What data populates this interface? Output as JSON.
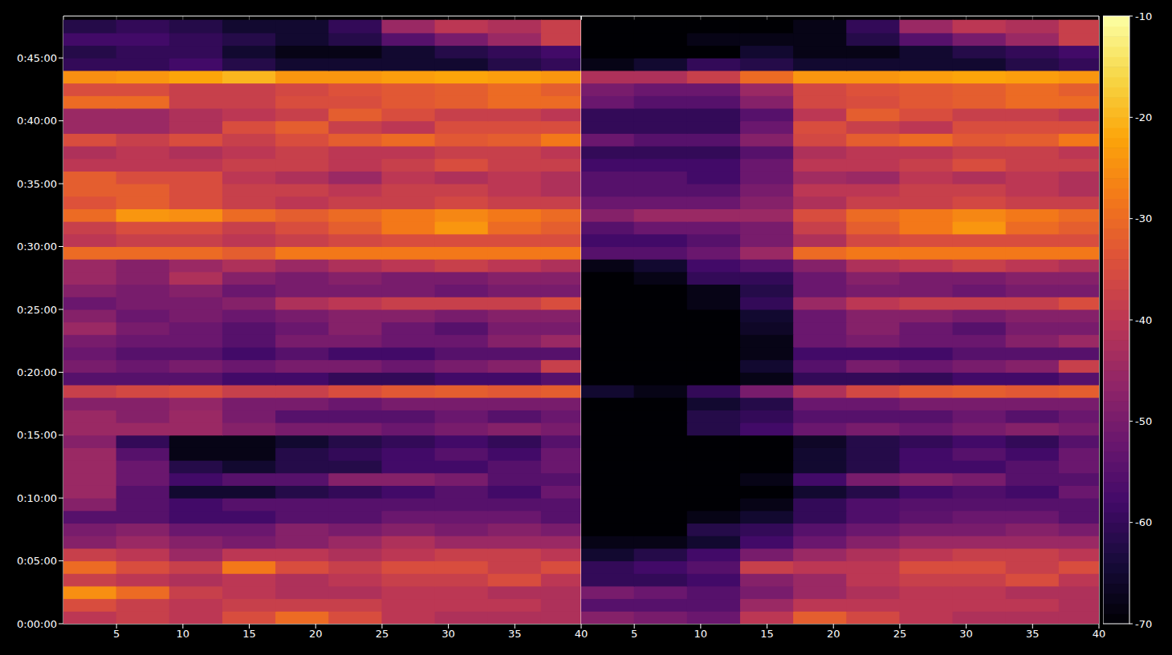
{
  "chart_data": [
    {
      "type": "heatmap",
      "grid": true,
      "xlim": [
        1,
        40
      ],
      "xticks": [
        5,
        10,
        15,
        20,
        25,
        30,
        35,
        40
      ],
      "ylim": [
        0,
        2900
      ],
      "yticks": [
        {
          "value": 0,
          "label": "0:00:00"
        },
        {
          "value": 300,
          "label": "0:05:00"
        },
        {
          "value": 600,
          "label": "0:10:00"
        },
        {
          "value": 900,
          "label": "0:15:00"
        },
        {
          "value": 1200,
          "label": "0:20:00"
        },
        {
          "value": 1500,
          "label": "0:25:00"
        },
        {
          "value": 1800,
          "label": "0:30:00"
        },
        {
          "value": 2100,
          "label": "0:35:00"
        },
        {
          "value": 2400,
          "label": "0:40:00"
        },
        {
          "value": 2700,
          "label": "0:45:00"
        }
      ],
      "x": [
        3,
        7,
        11,
        15,
        19,
        23,
        27,
        31,
        35,
        39
      ],
      "y": [
        30,
        90,
        150,
        210,
        270,
        330,
        390,
        450,
        510,
        570,
        630,
        690,
        750,
        810,
        870,
        930,
        990,
        1050,
        1110,
        1170,
        1230,
        1290,
        1350,
        1410,
        1470,
        1530,
        1590,
        1650,
        1710,
        1770,
        1830,
        1890,
        1950,
        2010,
        2070,
        2130,
        2190,
        2250,
        2310,
        2370,
        2430,
        2490,
        2550,
        2610,
        2670,
        2730,
        2790,
        2850
      ],
      "values": [
        [
          -40,
          -38,
          -40,
          -35,
          -30,
          -35,
          -40,
          -42,
          -42,
          -42
        ],
        [
          -35,
          -38,
          -40,
          -38,
          -38,
          -38,
          -40,
          -40,
          -40,
          -42
        ],
        [
          -25,
          -30,
          -38,
          -40,
          -42,
          -42,
          -40,
          -40,
          -42,
          -42
        ],
        [
          -38,
          -40,
          -42,
          -40,
          -42,
          -40,
          -38,
          -38,
          -35,
          -40
        ],
        [
          -30,
          -35,
          -38,
          -28,
          -35,
          -38,
          -35,
          -35,
          -38,
          -35
        ],
        [
          -38,
          -40,
          -45,
          -40,
          -40,
          -42,
          -40,
          -38,
          -38,
          -40
        ],
        [
          -48,
          -45,
          -48,
          -50,
          -48,
          -45,
          -42,
          -45,
          -45,
          -45
        ],
        [
          -50,
          -48,
          -52,
          -52,
          -48,
          -50,
          -48,
          -50,
          -48,
          -50
        ],
        [
          -55,
          -55,
          -58,
          -58,
          -55,
          -55,
          -52,
          -52,
          -52,
          -55
        ],
        [
          -48,
          -55,
          -58,
          -55,
          -55,
          -55,
          -55,
          -55,
          -55,
          -55
        ],
        [
          -45,
          -55,
          -65,
          -65,
          -62,
          -60,
          -58,
          -55,
          -58,
          -52
        ],
        [
          -45,
          -52,
          -58,
          -55,
          -55,
          -48,
          -48,
          -50,
          -55,
          -55
        ],
        [
          -45,
          -52,
          -62,
          -65,
          -62,
          -62,
          -58,
          -58,
          -55,
          -52
        ],
        [
          -45,
          -55,
          -68,
          -68,
          -62,
          -60,
          -58,
          -55,
          -58,
          -52
        ],
        [
          -48,
          -60,
          -68,
          -68,
          -65,
          -62,
          -60,
          -58,
          -60,
          -55
        ],
        [
          -45,
          -45,
          -45,
          -48,
          -50,
          -50,
          -52,
          -50,
          -48,
          -50
        ],
        [
          -45,
          -48,
          -45,
          -50,
          -55,
          -55,
          -55,
          -52,
          -55,
          -52
        ],
        [
          -48,
          -48,
          -46,
          -50,
          -50,
          -52,
          -50,
          -50,
          -50,
          -50
        ],
        [
          -38,
          -36,
          -35,
          -38,
          -38,
          -35,
          -33,
          -32,
          -33,
          -32
        ],
        [
          -55,
          -55,
          -55,
          -58,
          -58,
          -60,
          -60,
          -58,
          -58,
          -55
        ],
        [
          -50,
          -52,
          -50,
          -52,
          -50,
          -50,
          -52,
          -50,
          -48,
          -38
        ],
        [
          -52,
          -55,
          -55,
          -58,
          -55,
          -58,
          -58,
          -55,
          -55,
          -55
        ],
        [
          -50,
          -52,
          -52,
          -55,
          -50,
          -50,
          -52,
          -52,
          -48,
          -45
        ],
        [
          -45,
          -50,
          -52,
          -55,
          -52,
          -48,
          -52,
          -55,
          -50,
          -50
        ],
        [
          -48,
          -52,
          -50,
          -52,
          -50,
          -48,
          -48,
          -50,
          -48,
          -48
        ],
        [
          -52,
          -50,
          -50,
          -48,
          -42,
          -40,
          -38,
          -38,
          -38,
          -35
        ],
        [
          -48,
          -50,
          -48,
          -52,
          -50,
          -50,
          -50,
          -52,
          -50,
          -50
        ],
        [
          -45,
          -48,
          -42,
          -48,
          -50,
          -48,
          -50,
          -50,
          -48,
          -48
        ],
        [
          -45,
          -48,
          -45,
          -42,
          -45,
          -42,
          -40,
          -38,
          -40,
          -42
        ],
        [
          -30,
          -30,
          -30,
          -32,
          -28,
          -28,
          -28,
          -28,
          -28,
          -28
        ],
        [
          -40,
          -38,
          -38,
          -40,
          -38,
          -36,
          -35,
          -35,
          -35,
          -35
        ],
        [
          -38,
          -35,
          -35,
          -38,
          -35,
          -32,
          -28,
          -24,
          -30,
          -32
        ],
        [
          -30,
          -24,
          -25,
          -30,
          -32,
          -30,
          -28,
          -26,
          -28,
          -30
        ],
        [
          -34,
          -32,
          -35,
          -38,
          -40,
          -38,
          -38,
          -36,
          -38,
          -38
        ],
        [
          -32,
          -32,
          -35,
          -38,
          -38,
          -40,
          -38,
          -38,
          -40,
          -42
        ],
        [
          -32,
          -35,
          -35,
          -40,
          -42,
          -45,
          -40,
          -42,
          -40,
          -42
        ],
        [
          -40,
          -40,
          -40,
          -38,
          -38,
          -40,
          -38,
          -35,
          -38,
          -38
        ],
        [
          -42,
          -40,
          -42,
          -40,
          -38,
          -40,
          -40,
          -38,
          -38,
          -40
        ],
        [
          -35,
          -38,
          -35,
          -38,
          -35,
          -32,
          -30,
          -33,
          -32,
          -28
        ],
        [
          -45,
          -45,
          -42,
          -35,
          -32,
          -38,
          -40,
          -35,
          -35,
          -35
        ],
        [
          -45,
          -45,
          -42,
          -40,
          -38,
          -32,
          -35,
          -38,
          -38,
          -40
        ],
        [
          -30,
          -30,
          -38,
          -38,
          -35,
          -35,
          -33,
          -32,
          -30,
          -30
        ],
        [
          -35,
          -35,
          -38,
          -38,
          -36,
          -34,
          -33,
          -32,
          -30,
          -32
        ],
        [
          -25,
          -24,
          -22,
          -20,
          -24,
          -24,
          -23,
          -22,
          -23,
          -24
        ],
        [
          -60,
          -60,
          -58,
          -62,
          -65,
          -65,
          -65,
          -65,
          -62,
          -60
        ],
        [
          -62,
          -60,
          -60,
          -65,
          -68,
          -68,
          -65,
          -62,
          -60,
          -58
        ],
        [
          -58,
          -58,
          -60,
          -62,
          -65,
          -62,
          -55,
          -50,
          -45,
          -38
        ],
        [
          -62,
          -60,
          -62,
          -65,
          -65,
          -60,
          -45,
          -40,
          -42,
          -38
        ]
      ]
    },
    {
      "type": "heatmap",
      "grid": true,
      "xlim": [
        1,
        40
      ],
      "xticks": [
        5,
        10,
        15,
        20,
        25,
        30,
        35,
        40
      ],
      "ylim": [
        0,
        2900
      ],
      "tick_labels": "x",
      "x": [
        3,
        7,
        11,
        15,
        19,
        23,
        27,
        31,
        35,
        39
      ],
      "y": [
        30,
        90,
        150,
        210,
        270,
        330,
        390,
        450,
        510,
        570,
        630,
        690,
        750,
        810,
        870,
        930,
        990,
        1050,
        1110,
        1170,
        1230,
        1290,
        1350,
        1410,
        1470,
        1530,
        1590,
        1650,
        1710,
        1770,
        1830,
        1890,
        1950,
        2010,
        2070,
        2130,
        2190,
        2250,
        2310,
        2370,
        2430,
        2490,
        2550,
        2610,
        2670,
        2730,
        2790,
        2850
      ],
      "values": [
        [
          -48,
          -50,
          -52,
          -40,
          -32,
          -36,
          -40,
          -42,
          -42,
          -42
        ],
        [
          -55,
          -55,
          -55,
          -45,
          -40,
          -40,
          -40,
          -40,
          -40,
          -42
        ],
        [
          -50,
          -52,
          -55,
          -50,
          -45,
          -42,
          -40,
          -40,
          -42,
          -42
        ],
        [
          -60,
          -60,
          -58,
          -48,
          -45,
          -40,
          -38,
          -38,
          -35,
          -40
        ],
        [
          -60,
          -58,
          -55,
          -38,
          -40,
          -40,
          -35,
          -35,
          -38,
          -35
        ],
        [
          -65,
          -62,
          -58,
          -50,
          -45,
          -42,
          -40,
          -38,
          -38,
          -40
        ],
        [
          -68,
          -68,
          -65,
          -58,
          -52,
          -48,
          -45,
          -45,
          -45,
          -45
        ],
        [
          -70,
          -70,
          -62,
          -60,
          -55,
          -52,
          -50,
          -50,
          -48,
          -50
        ],
        [
          -70,
          -70,
          -68,
          -65,
          -60,
          -56,
          -54,
          -52,
          -52,
          -55
        ],
        [
          -70,
          -70,
          -70,
          -68,
          -60,
          -56,
          -55,
          -55,
          -55,
          -55
        ],
        [
          -70,
          -70,
          -70,
          -70,
          -65,
          -62,
          -58,
          -56,
          -58,
          -52
        ],
        [
          -70,
          -70,
          -70,
          -68,
          -58,
          -50,
          -48,
          -50,
          -55,
          -55
        ],
        [
          -70,
          -70,
          -70,
          -70,
          -65,
          -62,
          -58,
          -58,
          -55,
          -52
        ],
        [
          -70,
          -70,
          -70,
          -70,
          -65,
          -62,
          -58,
          -55,
          -58,
          -52
        ],
        [
          -70,
          -70,
          -70,
          -70,
          -66,
          -62,
          -60,
          -58,
          -60,
          -55
        ],
        [
          -70,
          -70,
          -62,
          -58,
          -52,
          -50,
          -52,
          -50,
          -48,
          -50
        ],
        [
          -70,
          -70,
          -62,
          -60,
          -55,
          -55,
          -55,
          -52,
          -55,
          -52
        ],
        [
          -70,
          -70,
          -65,
          -62,
          -52,
          -52,
          -50,
          -50,
          -50,
          -50
        ],
        [
          -65,
          -68,
          -60,
          -50,
          -42,
          -36,
          -33,
          -32,
          -33,
          -32
        ],
        [
          -70,
          -70,
          -70,
          -68,
          -60,
          -60,
          -60,
          -58,
          -58,
          -55
        ],
        [
          -70,
          -70,
          -70,
          -65,
          -55,
          -50,
          -52,
          -50,
          -48,
          -38
        ],
        [
          -70,
          -70,
          -70,
          -68,
          -58,
          -58,
          -58,
          -55,
          -55,
          -55
        ],
        [
          -70,
          -70,
          -70,
          -68,
          -52,
          -50,
          -52,
          -52,
          -48,
          -45
        ],
        [
          -70,
          -70,
          -70,
          -66,
          -52,
          -48,
          -52,
          -55,
          -50,
          -50
        ],
        [
          -70,
          -70,
          -70,
          -65,
          -52,
          -48,
          -48,
          -50,
          -48,
          -48
        ],
        [
          -70,
          -70,
          -68,
          -60,
          -45,
          -40,
          -38,
          -38,
          -38,
          -35
        ],
        [
          -70,
          -70,
          -68,
          -62,
          -52,
          -50,
          -50,
          -52,
          -50,
          -50
        ],
        [
          -70,
          -68,
          -60,
          -60,
          -52,
          -48,
          -50,
          -50,
          -48,
          -48
        ],
        [
          -68,
          -65,
          -58,
          -55,
          -48,
          -42,
          -40,
          -38,
          -40,
          -42
        ],
        [
          -55,
          -55,
          -52,
          -45,
          -30,
          -28,
          -28,
          -28,
          -28,
          -28
        ],
        [
          -58,
          -58,
          -55,
          -50,
          -42,
          -36,
          -35,
          -35,
          -35,
          -35
        ],
        [
          -55,
          -52,
          -52,
          -50,
          -38,
          -32,
          -28,
          -24,
          -30,
          -32
        ],
        [
          -48,
          -45,
          -45,
          -45,
          -35,
          -30,
          -28,
          -26,
          -28,
          -30
        ],
        [
          -52,
          -52,
          -52,
          -48,
          -42,
          -38,
          -38,
          -36,
          -38,
          -38
        ],
        [
          -55,
          -55,
          -55,
          -50,
          -40,
          -40,
          -38,
          -38,
          -40,
          -42
        ],
        [
          -55,
          -55,
          -58,
          -52,
          -44,
          -45,
          -40,
          -42,
          -40,
          -42
        ],
        [
          -58,
          -58,
          -58,
          -52,
          -40,
          -40,
          -38,
          -35,
          -38,
          -38
        ],
        [
          -60,
          -60,
          -60,
          -55,
          -42,
          -40,
          -40,
          -38,
          -38,
          -40
        ],
        [
          -52,
          -55,
          -55,
          -48,
          -36,
          -32,
          -30,
          -33,
          -32,
          -28
        ],
        [
          -60,
          -60,
          -60,
          -52,
          -35,
          -38,
          -40,
          -35,
          -35,
          -35
        ],
        [
          -60,
          -60,
          -60,
          -55,
          -40,
          -32,
          -35,
          -38,
          -38,
          -40
        ],
        [
          -52,
          -55,
          -55,
          -48,
          -36,
          -35,
          -33,
          -32,
          -30,
          -30
        ],
        [
          -50,
          -52,
          -52,
          -45,
          -36,
          -34,
          -33,
          -32,
          -30,
          -32
        ],
        [
          -42,
          -42,
          -38,
          -30,
          -24,
          -24,
          -23,
          -22,
          -23,
          -24
        ],
        [
          -68,
          -65,
          -60,
          -62,
          -65,
          -65,
          -65,
          -65,
          -62,
          -60
        ],
        [
          -70,
          -70,
          -70,
          -65,
          -68,
          -68,
          -65,
          -62,
          -60,
          -58
        ],
        [
          -70,
          -70,
          -68,
          -68,
          -68,
          -62,
          -55,
          -50,
          -45,
          -38
        ],
        [
          -70,
          -70,
          -70,
          -70,
          -68,
          -60,
          -45,
          -40,
          -42,
          -38
        ]
      ],
      "colorbar": {
        "range": [
          -70,
          -10
        ],
        "ticks": [
          -70,
          -60,
          -50,
          -40,
          -30,
          -20,
          -10
        ]
      }
    }
  ]
}
